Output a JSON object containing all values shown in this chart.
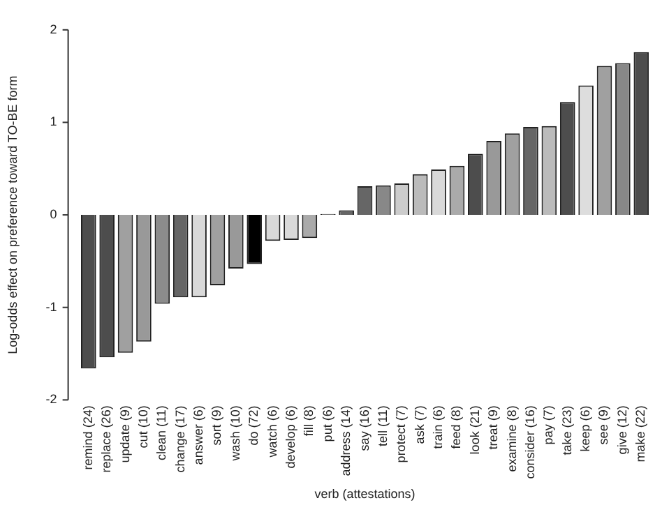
{
  "chart_data": {
    "type": "bar",
    "xlabel": "verb (attestations)",
    "ylabel": "Log-odds effect on preference toward TO-BE form",
    "categories": [
      "remind (24)",
      "replace (26)",
      "update (9)",
      "cut (10)",
      "clean (11)",
      "change (17)",
      "answer (6)",
      "sort (9)",
      "wash (10)",
      "do (72)",
      "watch (6)",
      "develop (6)",
      "fill (8)",
      "put (6)",
      "address (14)",
      "say (16)",
      "tell (11)",
      "protect (7)",
      "ask (7)",
      "train (6)",
      "feed (8)",
      "look (21)",
      "treat (9)",
      "examine (8)",
      "consider (16)",
      "pay (7)",
      "take (23)",
      "keep (6)",
      "see (9)",
      "give (12)",
      "make (22)"
    ],
    "values": [
      -1.66,
      -1.54,
      -1.49,
      -1.37,
      -0.96,
      -0.89,
      -0.89,
      -0.76,
      -0.58,
      -0.53,
      -0.28,
      -0.27,
      -0.25,
      0.01,
      0.05,
      0.31,
      0.32,
      0.34,
      0.44,
      0.49,
      0.53,
      0.66,
      0.8,
      0.88,
      0.95,
      0.96,
      1.22,
      1.4,
      1.61,
      1.64,
      1.76
    ],
    "colors": [
      "#4d4d4d",
      "#4d4d4d",
      "#a0a0a0",
      "#999999",
      "#8c8c8c",
      "#666666",
      "#d9d9d9",
      "#a0a0a0",
      "#999999",
      "#000000",
      "#d9d9d9",
      "#d9d9d9",
      "#aaaaaa",
      "#666666",
      "#666666",
      "#666666",
      "#888888",
      "#cccccc",
      "#bbbbbb",
      "#d9d9d9",
      "#aaaaaa",
      "#4d4d4d",
      "#999999",
      "#a0a0a0",
      "#666666",
      "#bbbbbb",
      "#4d4d4d",
      "#dddddd",
      "#a0a0a0",
      "#888888",
      "#4d4d4d"
    ],
    "ylim": [
      -2,
      2
    ],
    "yticks": [
      -2,
      -1,
      0,
      1,
      2
    ],
    "grid": false,
    "legend": false
  }
}
